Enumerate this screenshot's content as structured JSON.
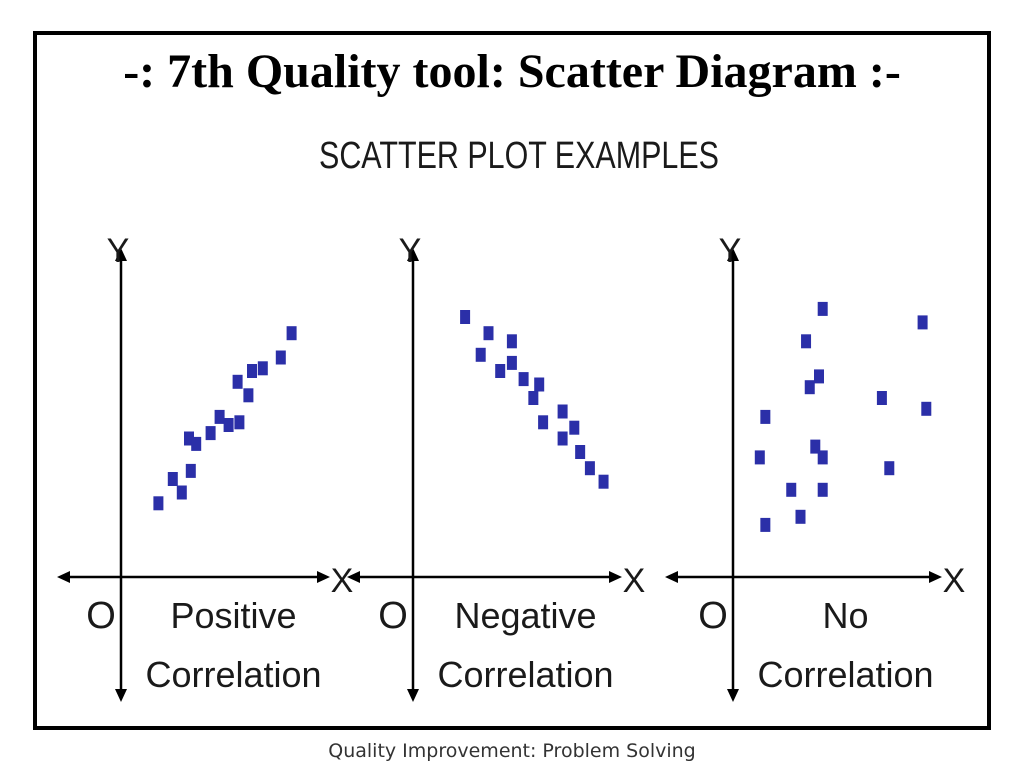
{
  "slide": {
    "title": "-: 7th Quality tool: Scatter Diagram :-",
    "subtitle": "SCATTER PLOT EXAMPLES",
    "footer": "Quality Improvement: Problem Solving"
  },
  "colors": {
    "point": "#2b2fa8",
    "axis": "#000000",
    "text": "#1a1a1a"
  },
  "chart_data": [
    {
      "type": "scatter",
      "title": "",
      "caption_line1": "Positive",
      "caption_line2": "Correlation",
      "xlabel": "X",
      "ylabel": "Y",
      "origin_label": "O",
      "xlim": [
        0,
        10
      ],
      "ylim": [
        0,
        10
      ],
      "grid": false,
      "points": [
        [
          1.3,
          2.1
        ],
        [
          2.1,
          3.0
        ],
        [
          2.6,
          2.5
        ],
        [
          3.0,
          4.5
        ],
        [
          3.4,
          4.3
        ],
        [
          3.1,
          3.3
        ],
        [
          4.2,
          4.7
        ],
        [
          4.7,
          5.3
        ],
        [
          5.2,
          5.0
        ],
        [
          5.8,
          5.1
        ],
        [
          5.7,
          6.6
        ],
        [
          6.3,
          6.1
        ],
        [
          6.5,
          7.0
        ],
        [
          7.1,
          7.1
        ],
        [
          8.1,
          7.5
        ],
        [
          8.7,
          8.4
        ]
      ]
    },
    {
      "type": "scatter",
      "title": "",
      "caption_line1": "Negative",
      "caption_line2": "Correlation",
      "xlabel": "X",
      "ylabel": "Y",
      "origin_label": "O",
      "xlim": [
        0,
        10
      ],
      "ylim": [
        0,
        10
      ],
      "grid": false,
      "points": [
        [
          1.8,
          9.0
        ],
        [
          2.6,
          7.6
        ],
        [
          3.0,
          8.4
        ],
        [
          3.6,
          7.0
        ],
        [
          4.2,
          8.1
        ],
        [
          4.2,
          7.3
        ],
        [
          4.8,
          6.7
        ],
        [
          5.3,
          6.0
        ],
        [
          5.6,
          6.5
        ],
        [
          5.8,
          5.1
        ],
        [
          6.8,
          5.5
        ],
        [
          6.8,
          4.5
        ],
        [
          7.4,
          4.9
        ],
        [
          7.7,
          4.0
        ],
        [
          8.2,
          3.4
        ],
        [
          8.9,
          2.9
        ]
      ]
    },
    {
      "type": "scatter",
      "title": "",
      "caption_line1": "No",
      "caption_line2": "Correlation",
      "xlabel": "X",
      "ylabel": "Y",
      "origin_label": "O",
      "xlim": [
        0,
        10
      ],
      "ylim": [
        0,
        10
      ],
      "grid": false,
      "points": [
        [
          0.8,
          3.8
        ],
        [
          1.1,
          5.3
        ],
        [
          1.1,
          1.3
        ],
        [
          2.5,
          2.6
        ],
        [
          3.0,
          1.6
        ],
        [
          3.3,
          8.1
        ],
        [
          3.5,
          6.4
        ],
        [
          3.8,
          4.2
        ],
        [
          4.0,
          6.8
        ],
        [
          4.2,
          9.3
        ],
        [
          4.2,
          2.6
        ],
        [
          4.2,
          3.8
        ],
        [
          7.4,
          6.0
        ],
        [
          7.8,
          3.4
        ],
        [
          9.6,
          8.8
        ],
        [
          9.8,
          5.6
        ]
      ]
    }
  ]
}
